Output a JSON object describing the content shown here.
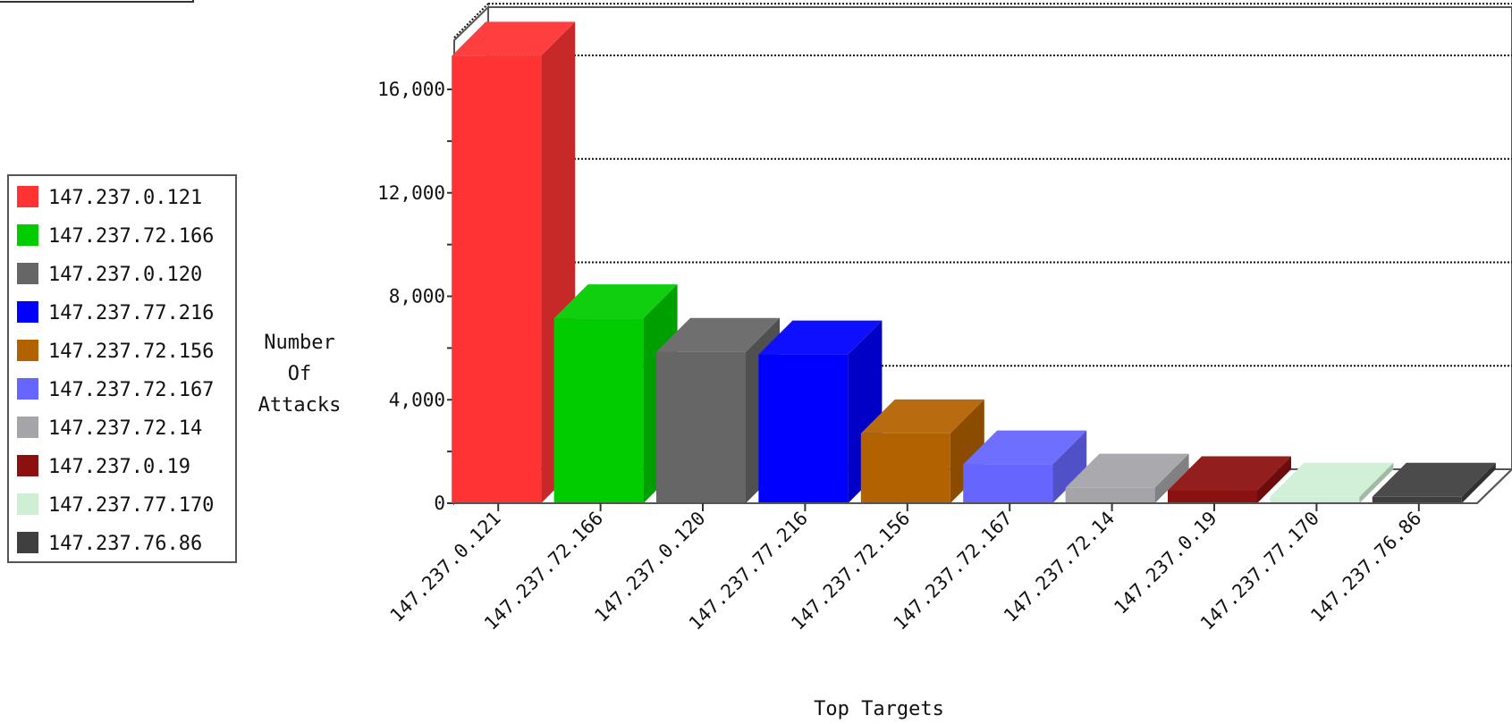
{
  "chart_data": {
    "type": "bar",
    "style": "3d",
    "xlabel": "Top Targets",
    "ylabel": "Number Of Attacks",
    "ylim": [
      0,
      18000
    ],
    "yticks": [
      0,
      4000,
      8000,
      12000,
      16000
    ],
    "ytick_labels": [
      "0",
      "4,000",
      "8,000",
      "12,000",
      "16,000"
    ],
    "grid": true,
    "legend_position": "left",
    "categories": [
      "147.237.0.121",
      "147.237.72.166",
      "147.237.0.120",
      "147.237.77.216",
      "147.237.72.156",
      "147.237.72.167",
      "147.237.72.14",
      "147.237.0.19",
      "147.237.77.170",
      "147.237.76.86"
    ],
    "values": [
      17300,
      7150,
      5850,
      5750,
      2700,
      1500,
      600,
      500,
      250,
      250
    ],
    "colors": [
      "#ff3333",
      "#00cc00",
      "#666666",
      "#0000ff",
      "#b36200",
      "#6666ff",
      "#a5a5a9",
      "#8b1010",
      "#cfefd4",
      "#3f3f3f"
    ]
  }
}
